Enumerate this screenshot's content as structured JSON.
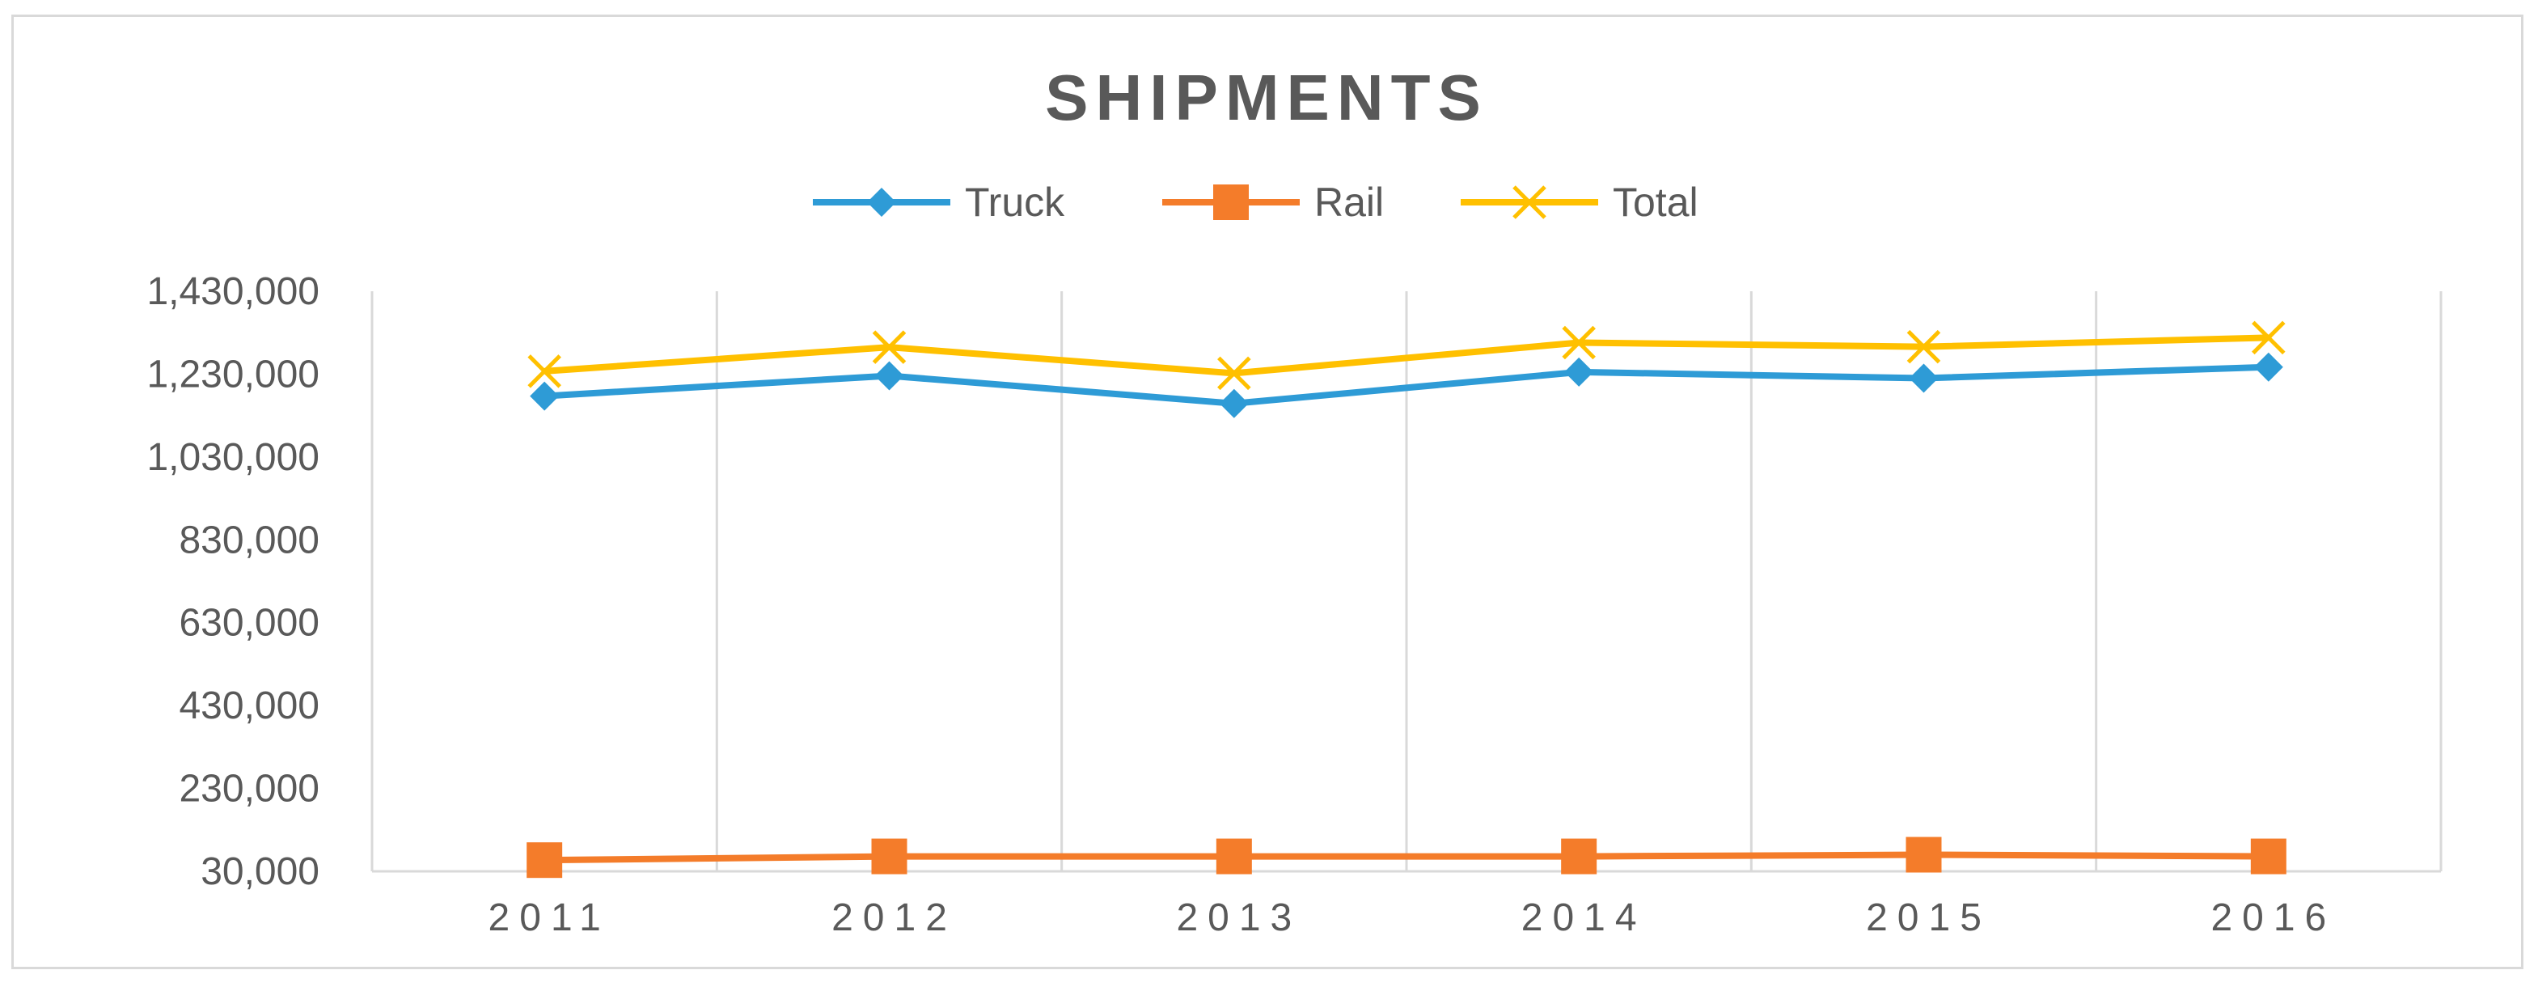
{
  "chart_data": {
    "type": "line",
    "title": "SHIPMENTS",
    "xlabel": "",
    "ylabel": "",
    "categories": [
      "2011",
      "2012",
      "2013",
      "2014",
      "2015",
      "2016"
    ],
    "ylim": [
      30000,
      1430000
    ],
    "yticks": [
      30000,
      230000,
      430000,
      630000,
      830000,
      1030000,
      1230000,
      1430000
    ],
    "ytick_labels": [
      "30,000",
      "230,000",
      "430,000",
      "630,000",
      "830,000",
      "1,030,000",
      "1,230,000",
      "1,430,000"
    ],
    "grid": "vertical",
    "legend": "top",
    "series": [
      {
        "name": "Truck",
        "color": "#2e9bd6",
        "marker": "diamond",
        "values": [
          1177000,
          1226000,
          1159000,
          1235000,
          1220000,
          1247000
        ]
      },
      {
        "name": "Rail",
        "color": "#f47c2a",
        "marker": "square",
        "values": [
          57000,
          66000,
          66000,
          66000,
          70000,
          66000
        ]
      },
      {
        "name": "Total",
        "color": "#ffc000",
        "marker": "x",
        "values": [
          1237000,
          1295000,
          1232000,
          1306000,
          1296000,
          1318000
        ]
      }
    ]
  }
}
